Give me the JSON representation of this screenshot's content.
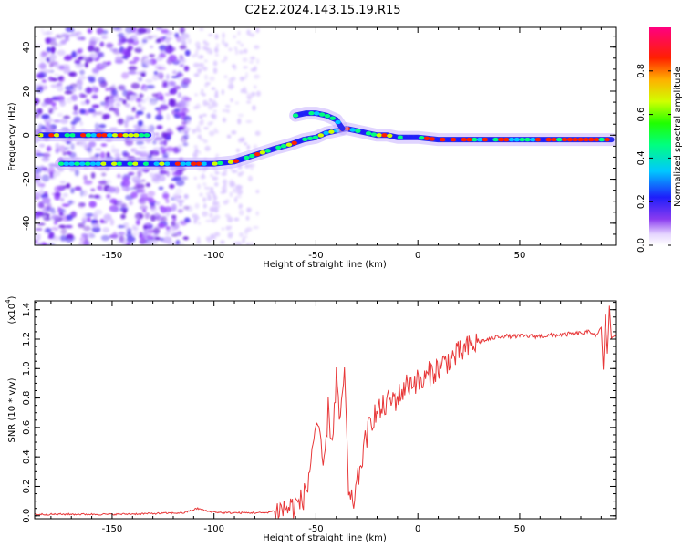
{
  "page_title": "C2E2.2024.143.15.19.R15",
  "chart_data": [
    {
      "type": "heatmap",
      "title": "C2E2.2024.143.15.19.R15",
      "xlabel": "Height of straight line (km)",
      "ylabel": "Frequency (Hz)",
      "xlim": [
        -188,
        97
      ],
      "ylim": [
        -50,
        49
      ],
      "x_ticks": [
        -150,
        -100,
        -50,
        0,
        50
      ],
      "y_ticks": [
        -40,
        -20,
        0,
        20,
        40
      ],
      "colorbar": {
        "label": "Normalized spectral amplitude",
        "range": [
          0,
          1
        ],
        "ticks": [
          0.0,
          0.2,
          0.4,
          0.6,
          0.8
        ]
      },
      "ridges": [
        {
          "x": [
            -185,
            -175,
            -165,
            -150,
            -140,
            -132
          ],
          "y": [
            0,
            0,
            0,
            0,
            0,
            0
          ]
        },
        {
          "x": [
            -175,
            -165,
            -150,
            -135,
            -120,
            -110,
            -100,
            -90,
            -80,
            -70,
            -62,
            -56,
            -50,
            -45,
            -40,
            -35,
            -30,
            -25,
            -20,
            -15,
            -10,
            -5,
            0,
            10,
            20,
            40,
            60,
            80,
            95
          ],
          "y": [
            -13,
            -13,
            -13,
            -13,
            -13,
            -13,
            -13,
            -12,
            -9,
            -6,
            -4,
            -2,
            -1,
            1,
            2,
            3,
            2,
            1,
            0,
            0,
            -1,
            -1,
            -1,
            -2,
            -2,
            -2,
            -2,
            -2,
            -2
          ]
        },
        {
          "x": [
            -60,
            -55,
            -50,
            -45,
            -40,
            -37
          ],
          "y": [
            9,
            10,
            10,
            9,
            7,
            3
          ]
        }
      ]
    },
    {
      "type": "line",
      "xlabel": "Height of straight line (km)",
      "ylabel": "SNR (10 * v/v)",
      "y_multiplier": "(x10",
      "y_multiplier_exp": "4",
      "xlim": [
        -188,
        97
      ],
      "ylim": [
        -0.02,
        1.46
      ],
      "x_ticks": [
        -150,
        -100,
        -50,
        0,
        50
      ],
      "y_ticks": [
        0.0,
        0.2,
        0.4,
        0.6,
        0.8,
        1.0,
        1.2,
        1.4
      ],
      "series": [
        {
          "color": "#e8393a",
          "x": [
            -188,
            -170,
            -150,
            -130,
            -115,
            -108,
            -103,
            -95,
            -85,
            -75,
            -68,
            -62,
            -57,
            -54,
            -52,
            -50,
            -48,
            -46,
            -44,
            -42,
            -40,
            -38,
            -36,
            -34,
            -32,
            -30,
            -28,
            -25,
            -22,
            -18,
            -14,
            -10,
            -6,
            -2,
            2,
            6,
            10,
            14,
            18,
            22,
            26,
            30,
            35,
            40,
            50,
            60,
            70,
            80,
            85,
            88,
            90,
            91,
            92,
            93,
            94,
            95,
            97
          ],
          "y": [
            0.01,
            0.01,
            0.01,
            0.015,
            0.02,
            0.05,
            0.03,
            0.02,
            0.02,
            0.02,
            0.04,
            0.06,
            0.1,
            0.2,
            0.45,
            0.62,
            0.48,
            0.32,
            0.72,
            0.5,
            0.95,
            0.6,
            1.02,
            0.12,
            0.08,
            0.2,
            0.35,
            0.55,
            0.68,
            0.72,
            0.78,
            0.8,
            0.88,
            0.92,
            0.9,
            0.97,
            1.0,
            1.05,
            1.08,
            1.12,
            1.15,
            1.18,
            1.2,
            1.22,
            1.22,
            1.22,
            1.23,
            1.24,
            1.25,
            1.22,
            1.28,
            0.98,
            1.36,
            1.1,
            1.42,
            1.2,
            1.22
          ]
        }
      ]
    }
  ]
}
